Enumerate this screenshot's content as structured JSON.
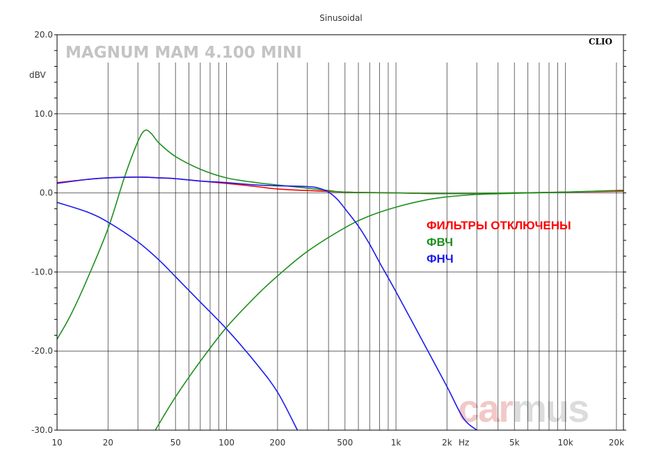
{
  "chart_data": {
    "type": "line",
    "title": "Sinusoidal",
    "xlabel": "Hz",
    "ylabel": "dBV",
    "xscale": "log",
    "xlim": [
      10,
      22000
    ],
    "ylim": [
      -30,
      20
    ],
    "grid": true,
    "x_ticks": [
      {
        "value": 10,
        "label": "10"
      },
      {
        "value": 20,
        "label": "20"
      },
      {
        "value": 50,
        "label": "50"
      },
      {
        "value": 100,
        "label": "100"
      },
      {
        "value": 200,
        "label": "200"
      },
      {
        "value": 500,
        "label": "500"
      },
      {
        "value": 1000,
        "label": "1k"
      },
      {
        "value": 2000,
        "label": "2k"
      },
      {
        "value": 5000,
        "label": "5k"
      },
      {
        "value": 10000,
        "label": "10k"
      },
      {
        "value": 20000,
        "label": "20k"
      }
    ],
    "y_ticks": [
      {
        "value": 20,
        "label": "20.0"
      },
      {
        "value": 10,
        "label": "10.0"
      },
      {
        "value": 0,
        "label": "0.0"
      },
      {
        "value": -10,
        "label": "-10.0"
      },
      {
        "value": -20,
        "label": "-20.0"
      },
      {
        "value": -30,
        "label": "-30.0"
      }
    ],
    "series": [
      {
        "name": "ФИЛЬТРЫ ОТКЛЮЧЕНЫ",
        "color": "#ff0000",
        "x": [
          10,
          15,
          20,
          30,
          40,
          50,
          70,
          100,
          150,
          200,
          300,
          500,
          700,
          1000,
          2000,
          5000,
          10000,
          20000,
          22000
        ],
        "y": [
          1.3,
          1.7,
          1.9,
          2.0,
          1.9,
          1.8,
          1.5,
          1.2,
          0.8,
          0.5,
          0.3,
          0.1,
          0.05,
          0.0,
          -0.1,
          0.0,
          0.1,
          0.2,
          0.2
        ]
      },
      {
        "name": "ФВЧ",
        "color": "#1e8f1e",
        "x": [
          10,
          12,
          15,
          20,
          25,
          30,
          33,
          36,
          40,
          50,
          70,
          100,
          150,
          200,
          300,
          400,
          500,
          1000,
          2000,
          5000,
          10000,
          20000,
          22000
        ],
        "y": [
          -18.5,
          -15.5,
          -11,
          -4.5,
          2,
          6.5,
          7.9,
          7.5,
          6.3,
          4.6,
          3.0,
          1.9,
          1.3,
          1.0,
          0.6,
          0.3,
          0.1,
          0.0,
          -0.1,
          0.0,
          0.1,
          0.3,
          0.3
        ]
      },
      {
        "name": "ФВЧ",
        "color": "#1e8f1e",
        "x": [
          38,
          50,
          70,
          100,
          150,
          200,
          300,
          500,
          700,
          1000,
          1500,
          2000,
          3000,
          5000,
          10000,
          20000,
          22000
        ],
        "y": [
          -30,
          -25.8,
          -21.3,
          -17,
          -13,
          -10.5,
          -7.4,
          -4.4,
          -2.9,
          -1.8,
          -0.9,
          -0.5,
          -0.2,
          -0.05,
          0.1,
          0.3,
          0.3
        ]
      },
      {
        "name": "ФНЧ",
        "color": "#1a1aee",
        "x": [
          10,
          15,
          20,
          30,
          40,
          50,
          70,
          100,
          150,
          200,
          300,
          350,
          400,
          450,
          500,
          600,
          700,
          800,
          1000,
          1500,
          2000,
          2500,
          3000
        ],
        "y": [
          1.2,
          1.7,
          1.9,
          2.0,
          1.9,
          1.8,
          1.5,
          1.3,
          1.0,
          0.9,
          0.8,
          0.6,
          0.1,
          -0.8,
          -2.0,
          -4.2,
          -6.5,
          -8.8,
          -12.5,
          -19.5,
          -24.5,
          -28.5,
          -30
        ]
      },
      {
        "name": "ФНЧ",
        "color": "#1a1aee",
        "x": [
          10,
          15,
          20,
          30,
          40,
          50,
          70,
          100,
          150,
          200,
          262
        ],
        "y": [
          -1.2,
          -2.4,
          -3.7,
          -6.2,
          -8.5,
          -10.6,
          -13.8,
          -17.2,
          -21.6,
          -25.2,
          -30
        ]
      }
    ]
  },
  "labels": {
    "model": "MAGNUM MAM 4.100 MINI",
    "brand": "CLIO",
    "legend": [
      {
        "text": "ФИЛЬТРЫ ОТКЛЮЧЕНЫ",
        "color": "#ff0000"
      },
      {
        "text": "ФВЧ",
        "color": "#1e8f1e"
      },
      {
        "text": "ФНЧ",
        "color": "#1a1aee"
      }
    ],
    "watermark": {
      "part1": "car",
      "part2": "mus",
      "color1": "#f2c8c8",
      "color2": "#dcdcdc"
    }
  }
}
